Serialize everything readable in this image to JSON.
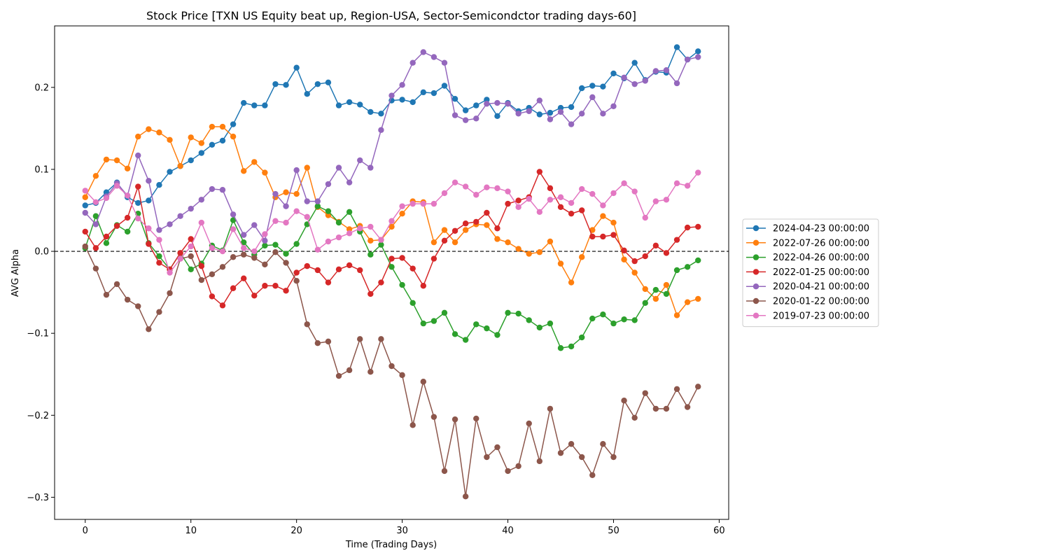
{
  "chart_data": {
    "type": "line",
    "title": "Stock Price [TXN US Equity beat up, Region-USA, Sector-Semicondctor trading days-60]",
    "xlabel": "Time (Trading Days)",
    "ylabel": "AVG Alpha",
    "xlim": [
      -2.9,
      60.9
    ],
    "ylim": [
      -0.327,
      0.275
    ],
    "xticks": [
      0,
      10,
      20,
      30,
      40,
      50,
      60
    ],
    "xtick_labels": [
      "0",
      "10",
      "20",
      "30",
      "40",
      "50",
      "60"
    ],
    "yticks": [
      -0.3,
      -0.2,
      -0.1,
      0.0,
      0.1,
      0.2
    ],
    "ytick_labels": [
      "−0.3",
      "−0.2",
      "−0.1",
      "0.0",
      "0.1",
      "0.2"
    ],
    "grid": false,
    "legend_position": "outside-right",
    "reference_line": {
      "y": 0.0,
      "style": "dashed",
      "color": "#000000"
    },
    "x": [
      0,
      1,
      2,
      3,
      4,
      5,
      6,
      7,
      8,
      9,
      10,
      11,
      12,
      13,
      14,
      15,
      16,
      17,
      18,
      19,
      20,
      21,
      22,
      23,
      24,
      25,
      26,
      27,
      28,
      29,
      30,
      31,
      32,
      33,
      34,
      35,
      36,
      37,
      38,
      39,
      40,
      41,
      42,
      43,
      44,
      45,
      46,
      47,
      48,
      49,
      50,
      51,
      52,
      53,
      54,
      55,
      56,
      57,
      58
    ],
    "series": [
      {
        "name": "2024-04-23 00:00:00",
        "color": "#1f77b4",
        "values": [
          0.056,
          0.059,
          0.072,
          0.084,
          0.066,
          0.059,
          0.062,
          0.081,
          0.097,
          0.104,
          0.111,
          0.12,
          0.13,
          0.135,
          0.155,
          0.181,
          0.178,
          0.178,
          0.204,
          0.203,
          0.224,
          0.192,
          0.204,
          0.206,
          0.178,
          0.182,
          0.179,
          0.17,
          0.168,
          0.184,
          0.185,
          0.182,
          0.194,
          0.193,
          0.202,
          0.186,
          0.172,
          0.178,
          0.185,
          0.165,
          0.181,
          0.171,
          0.175,
          0.167,
          0.169,
          0.175,
          0.176,
          0.199,
          0.202,
          0.201,
          0.217,
          0.211,
          0.23,
          0.209,
          0.219,
          0.218,
          0.249,
          0.234,
          0.244
        ]
      },
      {
        "name": "2022-07-26 00:00:00",
        "color": "#ff7f0e",
        "values": [
          0.066,
          0.092,
          0.112,
          0.111,
          0.101,
          0.14,
          0.149,
          0.145,
          0.136,
          0.104,
          0.139,
          0.132,
          0.152,
          0.152,
          0.14,
          0.098,
          0.109,
          0.096,
          0.066,
          0.072,
          0.07,
          0.102,
          0.054,
          0.044,
          0.036,
          0.027,
          0.031,
          0.013,
          0.014,
          0.03,
          0.046,
          0.061,
          0.06,
          0.011,
          0.026,
          0.011,
          0.026,
          0.033,
          0.032,
          0.015,
          0.011,
          0.003,
          -0.003,
          -0.001,
          0.012,
          -0.015,
          -0.038,
          -0.007,
          0.026,
          0.043,
          0.035,
          -0.01,
          -0.026,
          -0.046,
          -0.058,
          -0.041,
          -0.078,
          -0.062,
          -0.058
        ]
      },
      {
        "name": "2022-04-26 00:00:00",
        "color": "#2ca02c",
        "values": [
          0.004,
          0.043,
          0.01,
          0.032,
          0.024,
          0.046,
          0.01,
          -0.006,
          -0.022,
          -0.002,
          -0.022,
          -0.015,
          0.007,
          0.001,
          0.038,
          0.011,
          -0.004,
          0.007,
          0.008,
          -0.003,
          0.009,
          0.033,
          0.055,
          0.049,
          0.035,
          0.048,
          0.024,
          -0.004,
          0.008,
          -0.019,
          -0.041,
          -0.063,
          -0.088,
          -0.085,
          -0.075,
          -0.101,
          -0.108,
          -0.089,
          -0.094,
          -0.102,
          -0.075,
          -0.076,
          -0.084,
          -0.093,
          -0.088,
          -0.118,
          -0.116,
          -0.105,
          -0.082,
          -0.077,
          -0.088,
          -0.083,
          -0.084,
          -0.063,
          -0.047,
          -0.052,
          -0.023,
          -0.019,
          -0.011
        ]
      },
      {
        "name": "2022-01-25 00:00:00",
        "color": "#d62728",
        "values": [
          0.024,
          0.004,
          0.018,
          0.031,
          0.041,
          0.079,
          0.009,
          -0.014,
          -0.022,
          -0.002,
          0.015,
          -0.018,
          -0.055,
          -0.066,
          -0.045,
          -0.033,
          -0.054,
          -0.042,
          -0.042,
          -0.048,
          -0.026,
          -0.018,
          -0.023,
          -0.038,
          -0.022,
          -0.017,
          -0.023,
          -0.052,
          -0.038,
          -0.009,
          -0.008,
          -0.021,
          -0.042,
          -0.009,
          0.013,
          0.025,
          0.034,
          0.036,
          0.047,
          0.028,
          0.058,
          0.062,
          0.066,
          0.097,
          0.077,
          0.054,
          0.046,
          0.05,
          0.018,
          0.018,
          0.02,
          0.001,
          -0.012,
          -0.006,
          0.007,
          -0.002,
          0.014,
          0.029,
          0.03
        ]
      },
      {
        "name": "2020-04-21 00:00:00",
        "color": "#9467bd",
        "values": [
          0.047,
          0.033,
          0.067,
          0.083,
          0.068,
          0.117,
          0.086,
          0.026,
          0.033,
          0.043,
          0.052,
          0.063,
          0.076,
          0.075,
          0.045,
          0.02,
          0.032,
          0.013,
          0.07,
          0.055,
          0.099,
          0.061,
          0.061,
          0.082,
          0.102,
          0.084,
          0.111,
          0.102,
          0.148,
          0.19,
          0.203,
          0.23,
          0.243,
          0.237,
          0.23,
          0.166,
          0.16,
          0.162,
          0.18,
          0.181,
          0.18,
          0.168,
          0.171,
          0.184,
          0.161,
          0.17,
          0.155,
          0.168,
          0.188,
          0.168,
          0.177,
          0.212,
          0.204,
          0.208,
          0.22,
          0.221,
          0.205,
          0.234,
          0.237
        ]
      },
      {
        "name": "2020-01-22 00:00:00",
        "color": "#8c564b",
        "values": [
          0.006,
          -0.021,
          -0.053,
          -0.04,
          -0.059,
          -0.067,
          -0.095,
          -0.074,
          -0.051,
          -0.009,
          -0.006,
          -0.035,
          -0.028,
          -0.019,
          -0.007,
          -0.004,
          -0.008,
          -0.016,
          -0.001,
          -0.014,
          -0.036,
          -0.089,
          -0.112,
          -0.11,
          -0.152,
          -0.145,
          -0.107,
          -0.147,
          -0.107,
          -0.14,
          -0.151,
          -0.212,
          -0.159,
          -0.202,
          -0.268,
          -0.205,
          -0.299,
          -0.204,
          -0.251,
          -0.239,
          -0.268,
          -0.262,
          -0.21,
          -0.256,
          -0.192,
          -0.246,
          -0.235,
          -0.251,
          -0.273,
          -0.235,
          -0.251,
          -0.182,
          -0.203,
          -0.173,
          -0.192,
          -0.192,
          -0.168,
          -0.19,
          -0.165
        ]
      },
      {
        "name": "2019-07-23 00:00:00",
        "color": "#e377c2",
        "values": [
          0.074,
          0.06,
          0.065,
          0.08,
          0.068,
          0.04,
          0.028,
          0.014,
          -0.026,
          -0.009,
          0.006,
          0.035,
          0.004,
          0.0,
          0.027,
          0.004,
          0.0,
          0.021,
          0.037,
          0.035,
          0.049,
          0.042,
          0.002,
          0.012,
          0.017,
          0.022,
          0.028,
          0.03,
          0.014,
          0.037,
          0.055,
          0.058,
          0.058,
          0.058,
          0.071,
          0.084,
          0.079,
          0.069,
          0.078,
          0.077,
          0.073,
          0.054,
          0.064,
          0.048,
          0.063,
          0.066,
          0.059,
          0.076,
          0.07,
          0.056,
          0.071,
          0.083,
          0.073,
          0.041,
          0.061,
          0.063,
          0.083,
          0.08,
          0.096
        ]
      }
    ]
  }
}
